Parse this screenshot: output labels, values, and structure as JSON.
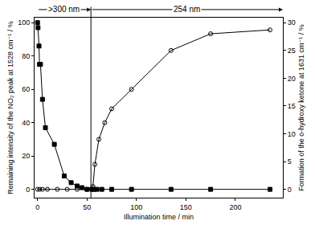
{
  "chart_data": {
    "type": "line",
    "x_label": "Illumination time / min",
    "y_label": "Remaining intensity of the NO₂ peak at 1528 cm⁻¹ / %",
    "y2_label": "Formation of the o-hydroxy ketone at 1631 cm⁻¹ / %",
    "xlim": [
      -3,
      248
    ],
    "xticks": [
      0,
      50,
      100,
      150,
      200
    ],
    "ylim": [
      -5,
      103
    ],
    "yticks": [
      0,
      20,
      40,
      60,
      80,
      100
    ],
    "y2lim": [
      -1.5,
      30.9
    ],
    "y2ticks": [
      0,
      5,
      10,
      15,
      20,
      25,
      30
    ],
    "vlines": [
      54
    ],
    "annotations": [
      {
        "text": ">300 nm",
        "x_from": 0,
        "x_to": 54
      },
      {
        "text": "254 nm",
        "x_from": 54,
        "x_to": 248
      }
    ],
    "series": [
      {
        "name": "NO₂ peak at 1528 cm⁻¹",
        "color": "#000000",
        "marker": "square",
        "line_style": "solid",
        "x": [
          0,
          0.5,
          1.5,
          2,
          3,
          5,
          8,
          17,
          27,
          34,
          40,
          45,
          50,
          55,
          57,
          60,
          65,
          75,
          95,
          135,
          175,
          235
        ],
        "values": [
          100,
          97,
          86,
          75,
          75,
          54,
          37,
          27,
          8,
          4,
          2,
          1,
          0,
          0,
          0,
          0,
          0,
          0,
          0,
          0,
          0,
          0
        ]
      },
      {
        "name": "o-hydroxy ketone at 1631 cm⁻¹",
        "color": "#000000",
        "marker": "circle-open",
        "line_style": "solid",
        "axis": "y2",
        "x": [
          0,
          2,
          5,
          10,
          20,
          30,
          40,
          50,
          56,
          58,
          62,
          68,
          75,
          95,
          135,
          175,
          235
        ],
        "values": [
          0,
          0,
          0,
          0,
          0,
          0,
          0,
          0,
          0.5,
          4.5,
          9,
          12,
          14.5,
          18,
          25,
          28,
          28.7
        ]
      }
    ]
  }
}
